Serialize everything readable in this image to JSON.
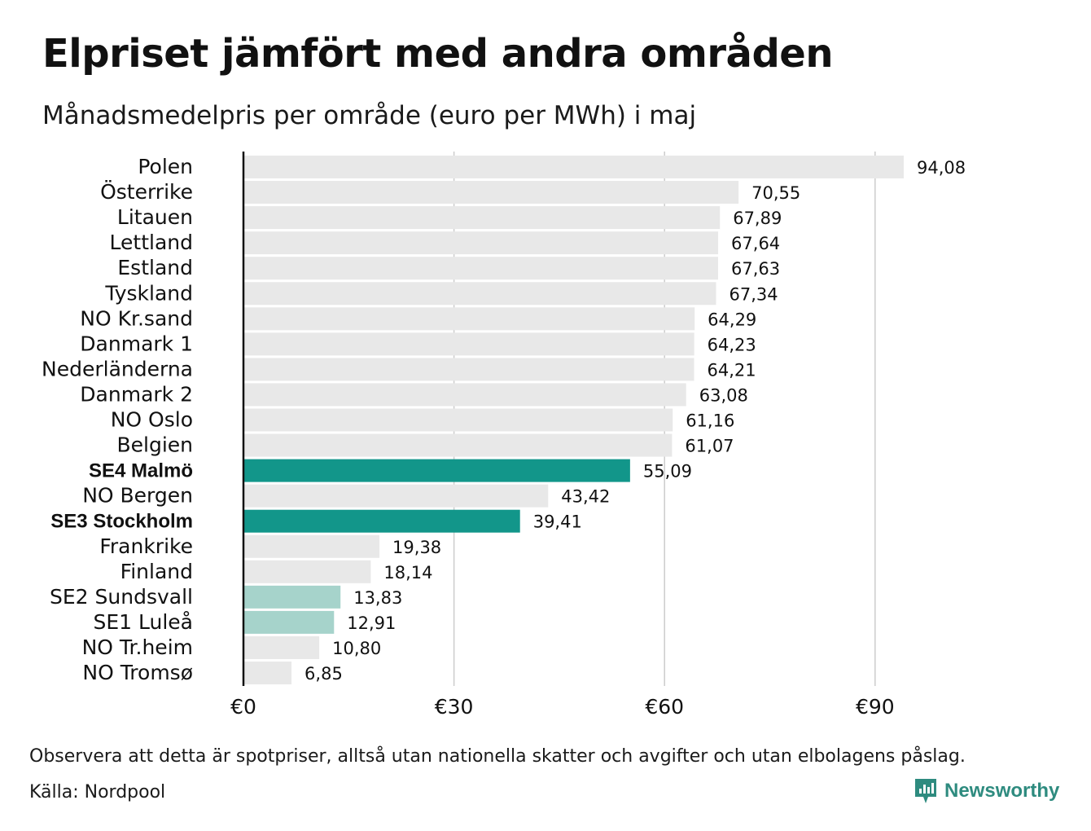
{
  "header": {
    "title": "Elpriset jämfört med andra områden",
    "subtitle": "Månadsmedelpris per område (euro per MWh) i maj"
  },
  "footer": {
    "note": "Observera att detta är spotpriser, alltså utan nationella skatter och avgifter och utan elbolagens påslag.",
    "source": "Källa: Nordpool",
    "brand": "Newsworthy"
  },
  "colors": {
    "default_bar": "#e8e8e8",
    "highlight_bar": "#12968a",
    "light_highlight_bar": "#a6d3cb",
    "axis": "#111111",
    "grid": "#cccccc",
    "brand": "#2e8b7f"
  },
  "chart_data": {
    "type": "bar",
    "orientation": "horizontal",
    "categories": [
      "Polen",
      "Österrike",
      "Litauen",
      "Lettland",
      "Estland",
      "Tyskland",
      "NO Kr.sand",
      "Danmark  1",
      "Nederländerna",
      "Danmark  2",
      "NO Oslo",
      "Belgien",
      "SE4 Malmö",
      "NO Bergen",
      "SE3 Stockholm",
      "Frankrike",
      "Finland",
      "SE2  Sundsvall",
      "SE1  Luleå",
      "NO Tr.heim",
      "NO Tromsø"
    ],
    "values": [
      94.08,
      70.55,
      67.89,
      67.64,
      67.63,
      67.34,
      64.29,
      64.23,
      64.21,
      63.08,
      61.16,
      61.07,
      55.09,
      43.42,
      39.41,
      19.38,
      18.14,
      13.83,
      12.91,
      10.8,
      6.85
    ],
    "value_labels": [
      "94,08",
      "70,55",
      "67,89",
      "67,64",
      "67,63",
      "67,34",
      "64,29",
      "64,23",
      "64,21",
      "63,08",
      "61,16",
      "61,07",
      "55,09",
      "43,42",
      "39,41",
      "19,38",
      "18,14",
      "13,83",
      "12,91",
      "10,80",
      "6,85"
    ],
    "highlight": [
      "none",
      "none",
      "none",
      "none",
      "none",
      "none",
      "none",
      "none",
      "none",
      "none",
      "none",
      "none",
      "strong",
      "none",
      "strong",
      "none",
      "none",
      "light",
      "light",
      "none",
      "none"
    ],
    "bold_labels": [
      "SE4 Malmö",
      "SE3 Stockholm"
    ],
    "xlim": [
      0,
      100
    ],
    "xticks": [
      0,
      30,
      60,
      90
    ],
    "xtick_labels": [
      "€0",
      "€30",
      "€60",
      "€90"
    ],
    "grid": true
  }
}
